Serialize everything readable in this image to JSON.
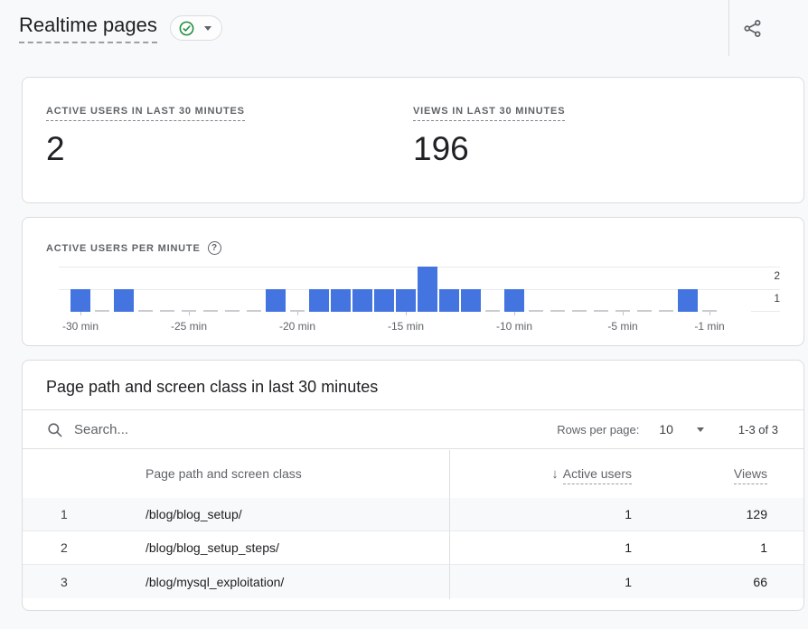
{
  "header": {
    "title": "Realtime pages"
  },
  "metrics": [
    {
      "label": "ACTIVE USERS IN LAST 30 MINUTES",
      "value": "2"
    },
    {
      "label": "VIEWS IN LAST 30 MINUTES",
      "value": "196"
    }
  ],
  "chart": {
    "label": "ACTIVE USERS PER MINUTE"
  },
  "chart_data": {
    "type": "bar",
    "title": "ACTIVE USERS PER MINUTE",
    "x_unit": "minutes ago",
    "categories": [
      -30,
      -29,
      -28,
      -27,
      -26,
      -25,
      -24,
      -23,
      -22,
      -21,
      -20,
      -19,
      -18,
      -17,
      -16,
      -15,
      -14,
      -13,
      -12,
      -11,
      -10,
      -9,
      -8,
      -7,
      -6,
      -5,
      -4,
      -3,
      -2,
      -1
    ],
    "values": [
      1,
      0,
      1,
      0,
      0,
      0,
      0,
      0,
      0,
      1,
      0,
      1,
      1,
      1,
      1,
      1,
      2,
      1,
      1,
      0,
      1,
      0,
      0,
      0,
      0,
      0,
      0,
      0,
      1,
      0
    ],
    "xticks": [
      {
        "minute": -30,
        "label": "-30 min"
      },
      {
        "minute": -25,
        "label": "-25 min"
      },
      {
        "minute": -20,
        "label": "-20 min"
      },
      {
        "minute": -15,
        "label": "-15 min"
      },
      {
        "minute": -10,
        "label": "-10 min"
      },
      {
        "minute": -5,
        "label": "-5 min"
      },
      {
        "minute": -1,
        "label": "-1 min"
      }
    ],
    "yticks": [
      {
        "value": 2,
        "label": "2"
      },
      {
        "value": 1,
        "label": "1"
      }
    ],
    "ylim": [
      0,
      2
    ],
    "grid": true,
    "bar_color": "#4374e0"
  },
  "table": {
    "title": "Page path and screen class in last 30 minutes",
    "search_placeholder": "Search...",
    "rows_per_page": {
      "label": "Rows per page:",
      "value": "10"
    },
    "pagination": "1-3 of 3",
    "header": {
      "dimension": "Page path and screen class",
      "active_users": "Active users",
      "views": "Views"
    },
    "rows": [
      {
        "index": "1",
        "path": "/blog/blog_setup/",
        "active_users": "1",
        "views": "129"
      },
      {
        "index": "2",
        "path": "/blog/blog_setup_steps/",
        "active_users": "1",
        "views": "1"
      },
      {
        "index": "3",
        "path": "/blog/mysql_exploitation/",
        "active_users": "1",
        "views": "66"
      }
    ]
  },
  "colors": {
    "bar_blue": "#4374e0",
    "badge_green": "#1e8e3e",
    "text_dark": "#202124",
    "text_gray": "#5f6368",
    "card_border": "#dadce0",
    "row_stripe": "#f8f9fa"
  }
}
